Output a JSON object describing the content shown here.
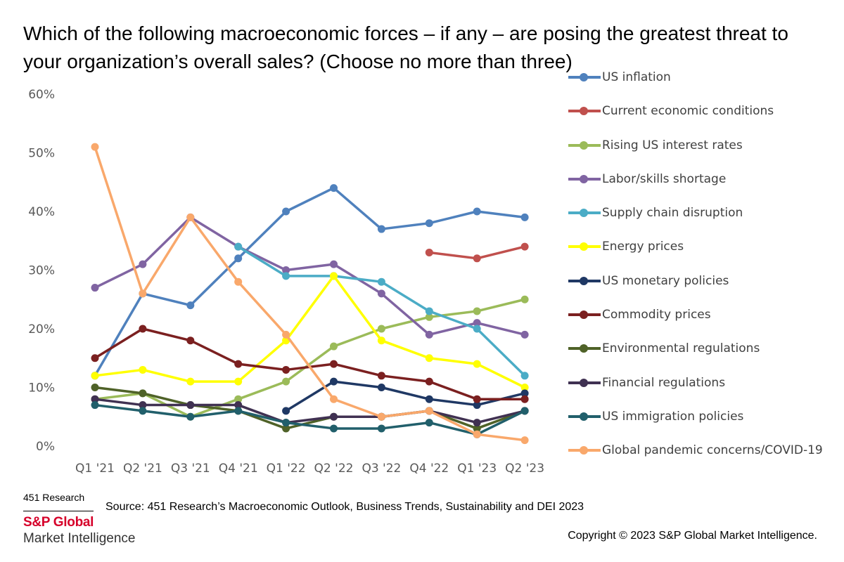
{
  "title": "Which of the following macroeconomic forces – if any – are posing the greatest threat to your organization’s overall sales? (Choose no more than three)",
  "source": "Source: 451 Research’s Macroeconomic Outlook, Business Trends, Sustainability and DEI 2023",
  "copyright": "Copyright © 2023 S&P Global Market Intelligence.",
  "brand": {
    "top": "451 Research",
    "name": "S&P Global",
    "sub": "Market Intelligence",
    "color": "#d6002a"
  },
  "chart_data": {
    "type": "line",
    "categories": [
      "Q1 '21",
      "Q2 '21",
      "Q3 '21",
      "Q4 '21",
      "Q1 '22",
      "Q2 '22",
      "Q3 '22",
      "Q4 '22",
      "Q1 '23",
      "Q2 '23"
    ],
    "ylim": [
      0,
      60
    ],
    "yticks": [
      "0%",
      "10%",
      "20%",
      "30%",
      "40%",
      "50%",
      "60%"
    ],
    "grid": false,
    "legend_position": "right",
    "series": [
      {
        "name": "US inflation",
        "color": "#4f81bd",
        "values": [
          12,
          26,
          24,
          32,
          40,
          44,
          37,
          38,
          40,
          39
        ]
      },
      {
        "name": "Current economic conditions",
        "color": "#c0504d",
        "values": [
          null,
          null,
          null,
          null,
          null,
          null,
          null,
          33,
          32,
          34
        ]
      },
      {
        "name": "Rising US interest rates",
        "color": "#9bbb59",
        "values": [
          8,
          9,
          5,
          8,
          11,
          17,
          20,
          22,
          23,
          25
        ]
      },
      {
        "name": "Labor/skills shortage",
        "color": "#8064a2",
        "values": [
          27,
          31,
          39,
          34,
          30,
          31,
          26,
          19,
          21,
          19
        ]
      },
      {
        "name": "Supply chain disruption",
        "color": "#4bacc6",
        "values": [
          null,
          null,
          null,
          34,
          29,
          29,
          28,
          23,
          20,
          12
        ]
      },
      {
        "name": "Energy prices",
        "color": "#ffff00",
        "values": [
          12,
          13,
          11,
          11,
          18,
          29,
          18,
          15,
          14,
          10
        ]
      },
      {
        "name": "US monetary policies",
        "color": "#1f3864",
        "values": [
          null,
          null,
          null,
          null,
          6,
          11,
          10,
          8,
          7,
          9
        ]
      },
      {
        "name": "Commodity prices",
        "color": "#7b2020",
        "values": [
          15,
          20,
          18,
          14,
          13,
          14,
          12,
          11,
          8,
          8
        ]
      },
      {
        "name": "Environmental regulations",
        "color": "#4f6228",
        "values": [
          10,
          9,
          7,
          6,
          3,
          5,
          5,
          6,
          3,
          6
        ]
      },
      {
        "name": "Financial regulations",
        "color": "#403152",
        "values": [
          8,
          7,
          7,
          7,
          4,
          5,
          5,
          6,
          4,
          6
        ]
      },
      {
        "name": "US immigration policies",
        "color": "#215f6b",
        "values": [
          7,
          6,
          5,
          6,
          4,
          3,
          3,
          4,
          2,
          6
        ]
      },
      {
        "name": "Global pandemic concerns/COVID-19",
        "color": "#f9a86b",
        "values": [
          51,
          26,
          39,
          28,
          19,
          8,
          5,
          6,
          2,
          1
        ]
      }
    ]
  }
}
